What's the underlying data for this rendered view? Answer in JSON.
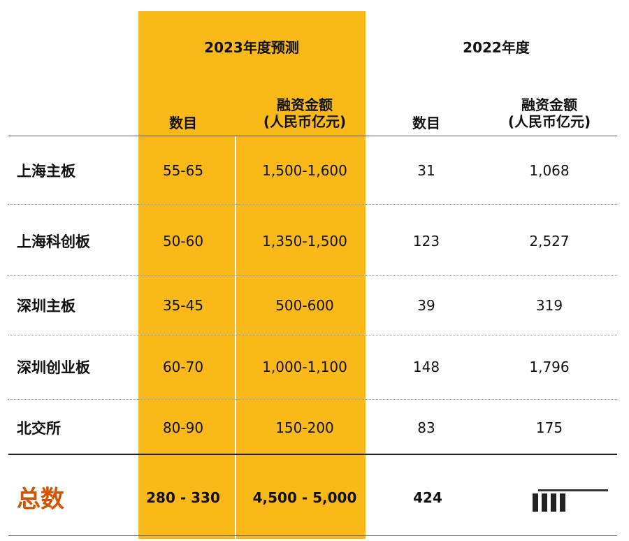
{
  "table": {
    "group_2023": "2023年度预测",
    "group_2022": "2022年度",
    "col_count": "数目",
    "col_amount_line1": "融资金额",
    "col_amount_line2": "(人民币亿元)",
    "rows": [
      {
        "label": "上海主板",
        "c2023": "55-65",
        "a2023": "1,500-1,600",
        "c2022": "31",
        "a2022": "1,068"
      },
      {
        "label": "上海科创板",
        "c2023": "50-60",
        "a2023": "1,350-1,500",
        "c2022": "123",
        "a2022": "2,527"
      },
      {
        "label": "深圳主板",
        "c2023": "35-45",
        "a2023": "500-600",
        "c2022": "39",
        "a2022": "319"
      },
      {
        "label": "深圳创业板",
        "c2023": "60-70",
        "a2023": "1,000-1,100",
        "c2022": "148",
        "a2022": "1,796"
      },
      {
        "label": "北交所",
        "c2023": "80-90",
        "a2023": "150-200",
        "c2022": "83",
        "a2022": "175"
      }
    ],
    "total": {
      "label": "总数",
      "c2023": "280 - 330",
      "a2023": "4,500 - 5,000",
      "c2022": "424"
    }
  },
  "colors": {
    "highlight_band": "#f8b919",
    "total_label": "#d35400"
  }
}
